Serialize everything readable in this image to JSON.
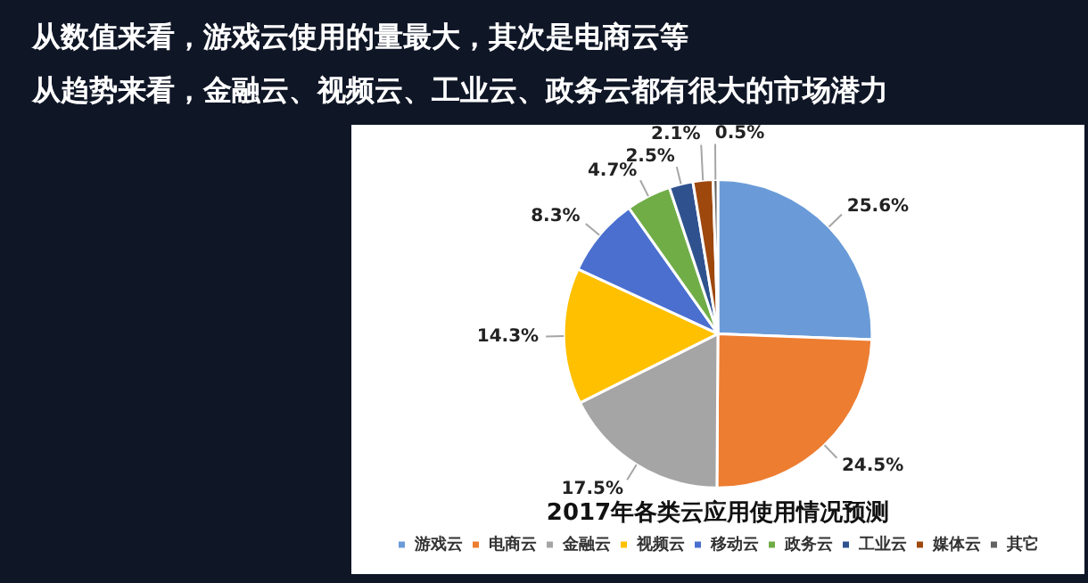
{
  "chart_data": {
    "type": "pie",
    "title": "2017年各类云应用使用情况预测",
    "annotations": [
      "从数值来看，游戏云使用的量最大，其次是电商云等",
      "从趋势来看，金融云、视频云、工业云、政务云都有很大的市场潜力"
    ],
    "categories": [
      "游戏云",
      "电商云",
      "金融云",
      "视频云",
      "移动云",
      "政务云",
      "工业云",
      "媒体云",
      "其它"
    ],
    "values": [
      25.6,
      24.5,
      17.5,
      14.3,
      8.3,
      4.7,
      2.5,
      2.1,
      0.5
    ],
    "value_labels": [
      "25.6%",
      "24.5%",
      "17.5%",
      "14.3%",
      "8.3%",
      "4.7%",
      "2.5%",
      "2.1%",
      "0.5%"
    ],
    "colors": [
      "#6a9bd8",
      "#ed7d31",
      "#a5a5a5",
      "#ffc000",
      "#4a6fcf",
      "#70ad47",
      "#2f528f",
      "#9e480e",
      "#636363"
    ],
    "legend": "bottom"
  }
}
